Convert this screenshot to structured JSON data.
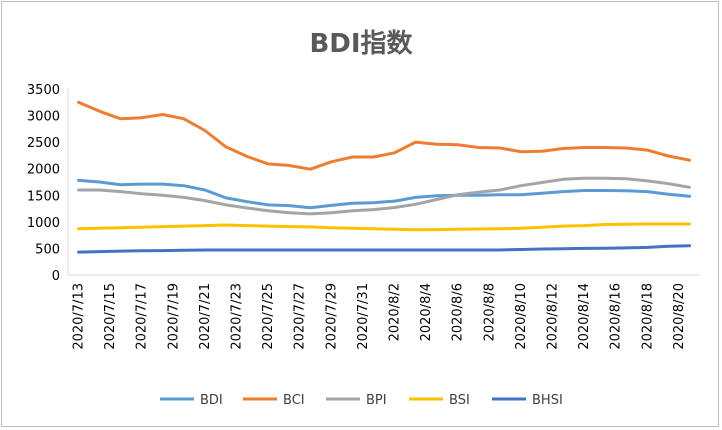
{
  "chart_data": {
    "type": "line",
    "title": "BDI指数",
    "xlabel": "",
    "ylabel": "",
    "ylim": [
      0,
      3500
    ],
    "yticks": [
      0,
      500,
      1000,
      1500,
      2000,
      2500,
      3000,
      3500
    ],
    "grid": false,
    "legend_position": "bottom",
    "x": [
      "2020/7/13",
      "2020/7/14",
      "2020/7/15",
      "2020/7/16",
      "2020/7/17",
      "2020/7/20",
      "2020/7/21",
      "2020/7/22",
      "2020/7/23",
      "2020/7/24",
      "2020/7/27",
      "2020/7/28",
      "2020/7/29",
      "2020/7/30",
      "2020/7/31",
      "2020/8/3",
      "2020/8/4",
      "2020/8/5",
      "2020/8/6",
      "2020/8/7",
      "2020/8/10",
      "2020/8/11",
      "2020/8/12",
      "2020/8/13",
      "2020/8/14",
      "2020/8/17",
      "2020/8/18",
      "2020/8/19",
      "2020/8/20",
      "2020/8/21"
    ],
    "x_tick_labels": [
      "2020/7/13",
      "2020/7/15",
      "2020/7/17",
      "2020/7/19",
      "2020/7/21",
      "2020/7/23",
      "2020/7/25",
      "2020/7/27",
      "2020/7/29",
      "2020/7/31",
      "2020/8/2",
      "2020/8/4",
      "2020/8/6",
      "2020/8/8",
      "2020/8/10",
      "2020/8/12",
      "2020/8/14",
      "2020/8/16",
      "2020/8/18",
      "2020/8/20"
    ],
    "series": [
      {
        "name": "BDI",
        "color": "#5b9bd5",
        "values": [
          1780,
          1750,
          1700,
          1710,
          1710,
          1680,
          1600,
          1450,
          1380,
          1320,
          1305,
          1265,
          1310,
          1350,
          1360,
          1390,
          1460,
          1490,
          1500,
          1500,
          1510,
          1510,
          1540,
          1570,
          1590,
          1590,
          1585,
          1570,
          1520,
          1480
        ]
      },
      {
        "name": "BCI",
        "color": "#ed7d31",
        "values": [
          3250,
          3080,
          2940,
          2960,
          3020,
          2940,
          2720,
          2410,
          2230,
          2090,
          2060,
          1990,
          2130,
          2220,
          2220,
          2300,
          2500,
          2460,
          2450,
          2400,
          2390,
          2320,
          2330,
          2380,
          2400,
          2400,
          2390,
          2350,
          2240,
          2160
        ]
      },
      {
        "name": "BPI",
        "color": "#a5a5a5",
        "values": [
          1600,
          1600,
          1570,
          1530,
          1500,
          1460,
          1400,
          1320,
          1260,
          1210,
          1170,
          1150,
          1170,
          1210,
          1230,
          1270,
          1330,
          1420,
          1510,
          1560,
          1600,
          1680,
          1740,
          1800,
          1820,
          1820,
          1810,
          1770,
          1720,
          1650
        ]
      },
      {
        "name": "BSI",
        "color": "#ffc000",
        "values": [
          870,
          880,
          890,
          900,
          910,
          920,
          930,
          940,
          930,
          920,
          910,
          905,
          890,
          880,
          870,
          860,
          850,
          855,
          860,
          865,
          870,
          880,
          900,
          920,
          930,
          950,
          955,
          960,
          960,
          960
        ]
      },
      {
        "name": "BHSI",
        "color": "#4472c4",
        "values": [
          430,
          440,
          450,
          455,
          460,
          465,
          470,
          470,
          470,
          470,
          470,
          470,
          470,
          470,
          470,
          470,
          470,
          470,
          470,
          470,
          470,
          480,
          490,
          495,
          500,
          505,
          510,
          520,
          540,
          550
        ]
      }
    ]
  }
}
